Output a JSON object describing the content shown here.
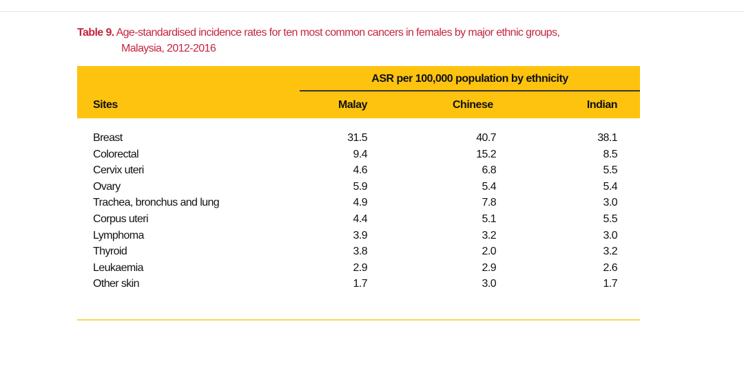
{
  "title": {
    "label": "Table 9.",
    "text_line1": "Age-standardised incidence rates for ten most common cancers in females by major ethnic groups,",
    "text_line2": "Malaysia, 2012-2016"
  },
  "header": {
    "group": "ASR per 100,000 population by ethnicity",
    "columns": [
      "Sites",
      "Malay",
      "Chinese",
      "Indian"
    ]
  },
  "rows": [
    {
      "site": "Breast",
      "malay": "31.5",
      "chinese": "40.7",
      "indian": "38.1"
    },
    {
      "site": "Colorectal",
      "malay": "9.4",
      "chinese": "15.2",
      "indian": "8.5"
    },
    {
      "site": "Cervix uteri",
      "malay": "4.6",
      "chinese": "6.8",
      "indian": "5.5"
    },
    {
      "site": "Ovary",
      "malay": "5.9",
      "chinese": "5.4",
      "indian": "5.4"
    },
    {
      "site": "Trachea, bronchus and lung",
      "malay": "4.9",
      "chinese": "7.8",
      "indian": "3.0"
    },
    {
      "site": "Corpus uteri",
      "malay": "4.4",
      "chinese": "5.1",
      "indian": "5.5"
    },
    {
      "site": "Lymphoma",
      "malay": "3.9",
      "chinese": "3.2",
      "indian": "3.0"
    },
    {
      "site": "Thyroid",
      "malay": "3.8",
      "chinese": "2.0",
      "indian": "3.2"
    },
    {
      "site": "Leukaemia",
      "malay": "2.9",
      "chinese": "2.9",
      "indian": "2.6"
    },
    {
      "site": "Other skin",
      "malay": "1.7",
      "chinese": "3.0",
      "indian": "1.7"
    }
  ],
  "colors": {
    "title": "#c4253f",
    "band": "#fdc30f",
    "bottom_rule": "#fcd35a"
  }
}
